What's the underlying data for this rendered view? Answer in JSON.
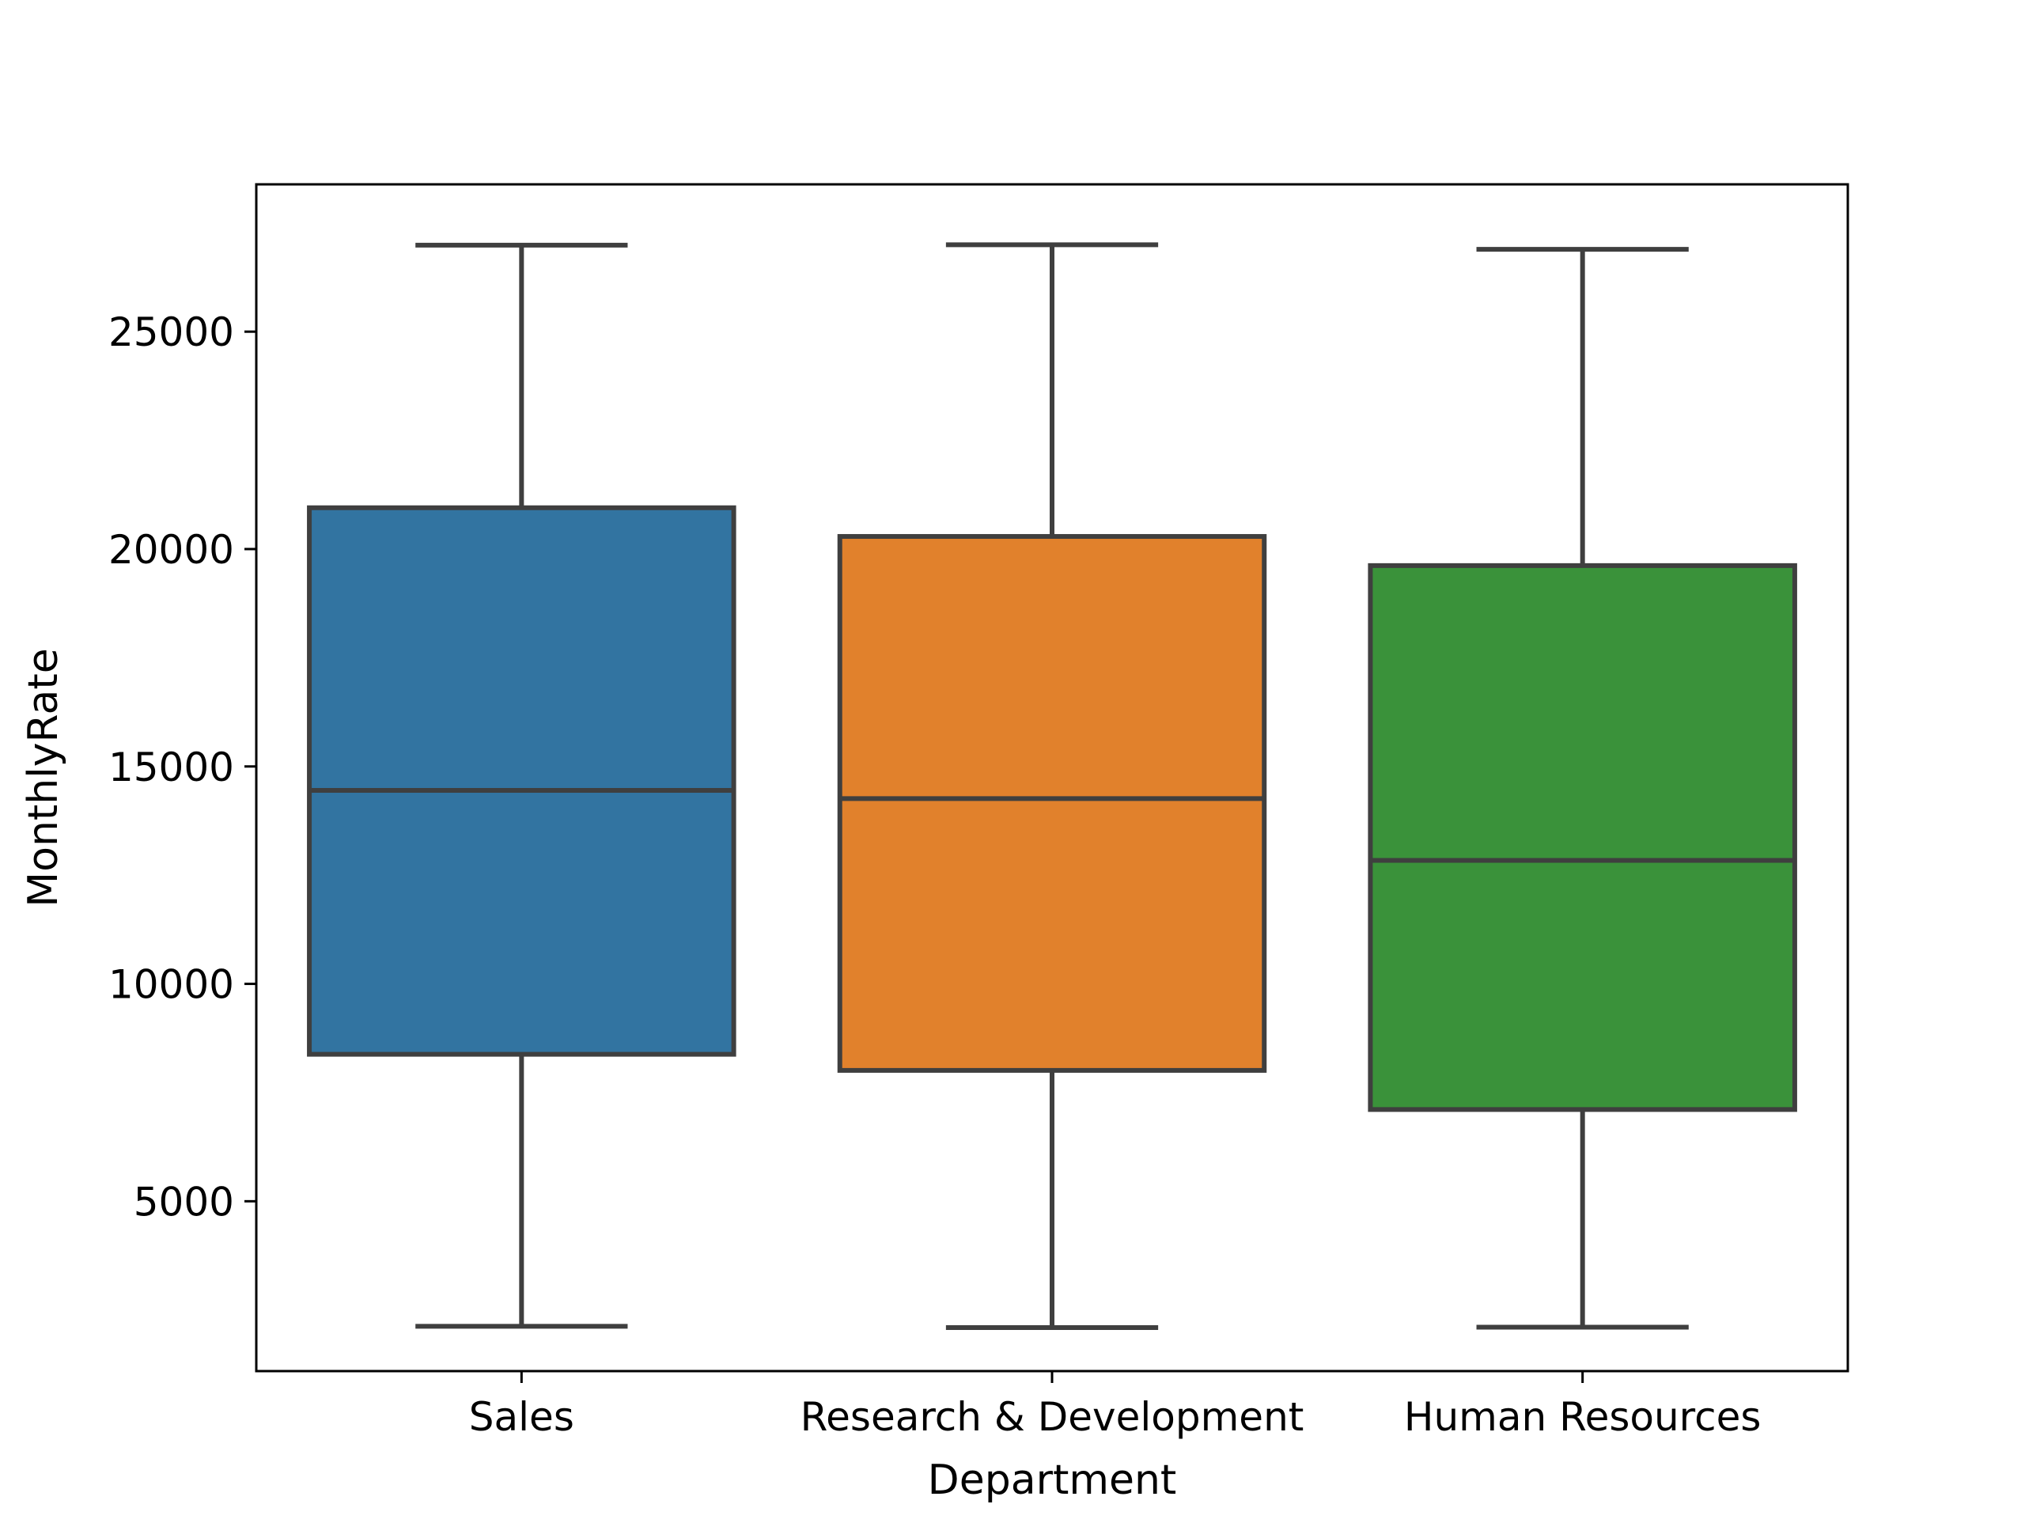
{
  "chart_data": {
    "type": "boxplot",
    "title": "",
    "xlabel": "Department",
    "ylabel": "MonthlyRate",
    "categories": [
      "Sales",
      "Research & Development",
      "Human Resources"
    ],
    "ylim": [
      1094,
      28388
    ],
    "yticks": [
      5000,
      10000,
      15000,
      20000,
      25000
    ],
    "yticklabels": [
      "5000",
      "10000",
      "15000",
      "20000",
      "25000"
    ],
    "boxes": [
      {
        "category": "Sales",
        "whisker_low": 2125,
        "q1": 8380,
        "median": 14450,
        "q3": 20950,
        "whisker_high": 26990,
        "color": "#3274a1"
      },
      {
        "category": "Research & Development",
        "whisker_low": 2094,
        "q1": 8010,
        "median": 14260,
        "q3": 20290,
        "whisker_high": 26999,
        "color": "#e1812c"
      },
      {
        "category": "Human Resources",
        "whisker_low": 2104,
        "q1": 7110,
        "median": 12840,
        "q3": 19620,
        "whisker_high": 26894,
        "color": "#3a923a"
      }
    ],
    "edge_color": "#3f3f3f",
    "grid": false,
    "legend": "none"
  }
}
